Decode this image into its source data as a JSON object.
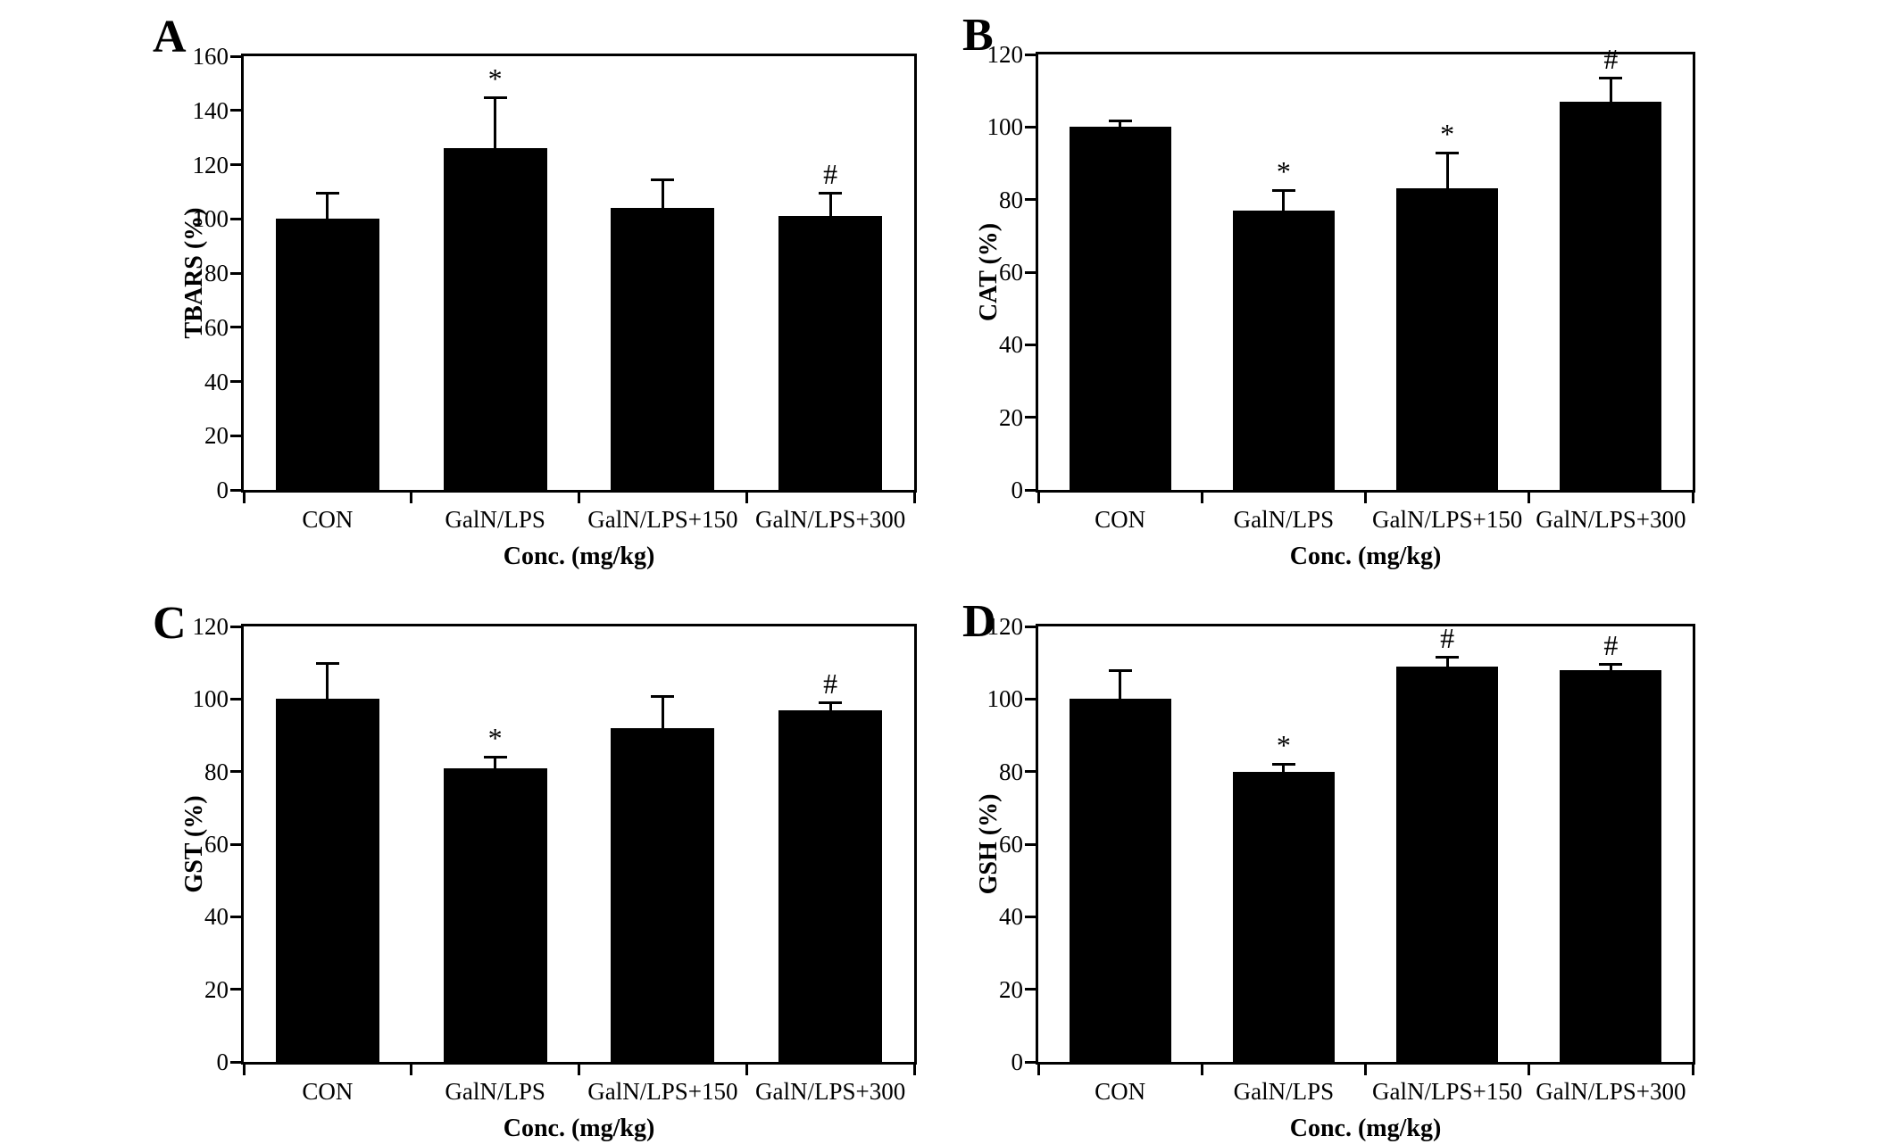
{
  "figure": {
    "background": "#ffffff",
    "bar_color": "#000000",
    "axis_color": "#000000",
    "text_color": "#000000"
  },
  "chart_data": [
    {
      "type": "bar",
      "panel": "A",
      "ylabel": "TBARS (%)",
      "xlabel": "Conc. (mg/kg)",
      "categories": [
        "CON",
        "GalN/LPS",
        "GalN/LPS+150",
        "GalN/LPS+300"
      ],
      "values": [
        100,
        126,
        104,
        101
      ],
      "errors_plus": [
        10,
        19,
        11,
        9
      ],
      "sig_markers": [
        "",
        "*",
        "",
        "#"
      ],
      "ylim": [
        0,
        160
      ],
      "yticks": [
        0,
        20,
        40,
        60,
        80,
        100,
        120,
        140,
        160
      ],
      "grid": false,
      "legend": null
    },
    {
      "type": "bar",
      "panel": "B",
      "ylabel": "CAT (%)",
      "xlabel": "Conc. (mg/kg)",
      "categories": [
        "CON",
        "GalN/LPS",
        "GalN/LPS+150",
        "GalN/LPS+300"
      ],
      "values": [
        100,
        77,
        83,
        107
      ],
      "errors_plus": [
        2,
        6,
        10,
        7
      ],
      "sig_markers": [
        "",
        "*",
        "*",
        "#"
      ],
      "ylim": [
        0,
        120
      ],
      "yticks": [
        0,
        20,
        40,
        60,
        80,
        100,
        120
      ],
      "grid": false,
      "legend": null
    },
    {
      "type": "bar",
      "panel": "C",
      "ylabel": "GST (%)",
      "xlabel": "Conc. (mg/kg)",
      "categories": [
        "CON",
        "GalN/LPS",
        "GalN/LPS+150",
        "GalN/LPS+300"
      ],
      "values": [
        100,
        81,
        92,
        97
      ],
      "errors_plus": [
        10,
        3.5,
        9,
        2.5
      ],
      "sig_markers": [
        "",
        "*",
        "",
        "#"
      ],
      "ylim": [
        0,
        120
      ],
      "yticks": [
        0,
        20,
        40,
        60,
        80,
        100,
        120
      ],
      "grid": false,
      "legend": null
    },
    {
      "type": "bar",
      "panel": "D",
      "ylabel": "GSH (%)",
      "xlabel": "Conc. (mg/kg)",
      "categories": [
        "CON",
        "GalN/LPS",
        "GalN/LPS+150",
        "GalN/LPS+300"
      ],
      "values": [
        100,
        80,
        109,
        108
      ],
      "errors_plus": [
        8,
        2.5,
        3,
        2
      ],
      "sig_markers": [
        "",
        "*",
        "#",
        "#"
      ],
      "ylim": [
        0,
        120
      ],
      "yticks": [
        0,
        20,
        40,
        60,
        80,
        100,
        120
      ],
      "grid": false,
      "legend": null
    }
  ]
}
